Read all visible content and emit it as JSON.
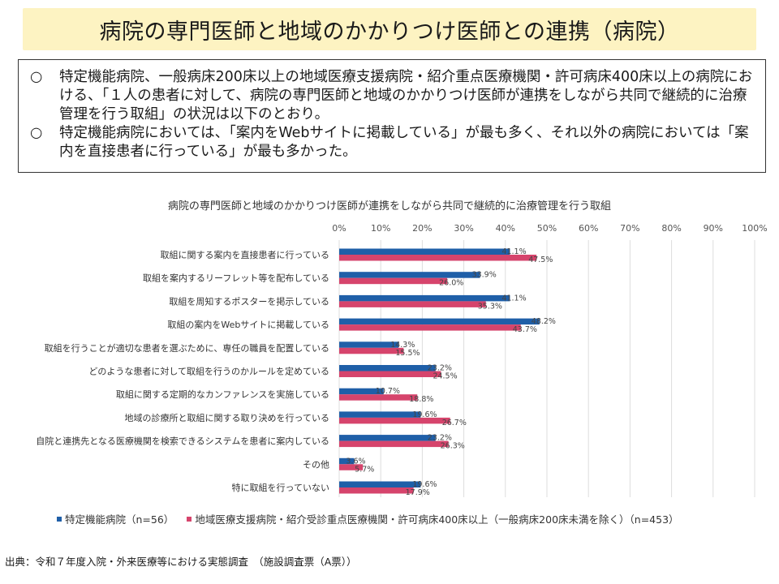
{
  "page": {
    "title": "病院の専門医師と地域のかかりつけ医師との連携（病院）",
    "summary": [
      {
        "mark": "○",
        "text": "特定機能病院、一般病床200床以上の地域医療支援病院・紹介重点医療機関・許可病床400床以上の病院における、「１人の患者に対して、病院の専門医師と地域のかかりつけ医師が連携をしながら共同で継続的に治療管理を行う取組」の状況は以下のとおり。"
      },
      {
        "mark": "○",
        "text": "特定機能病院においては、「案内をWebサイトに掲載している」が最も多く、それ以外の病院においては「案内を直接患者に行っている」が最も多かった。"
      }
    ],
    "source": "出典：令和７年度入院・外来医療等における実態調査　（施設調査票（A票））"
  },
  "chart_data": {
    "type": "bar",
    "orientation": "horizontal",
    "title": "病院の専門医師と地域のかかりつけ医師が連携をしながら共同で継続的に治療管理を行う取組",
    "categories": [
      "取組に関する案内を直接患者に行っている",
      "取組を案内するリーフレット等を配布している",
      "取組を周知するポスターを掲示している",
      "取組の案内をWebサイトに掲載している",
      "取組を行うことが適切な患者を選ぶために、専任の職員を配置している",
      "どのような患者に対して取組を行うのかルールを定めている",
      "取組に関する定期的なカンファレンスを実施している",
      "地域の診療所と取組に関する取り決めを行っている",
      "自院と連携先となる医療機関を検索できるシステムを患者に案内している",
      "その他",
      "特に取組を行っていない"
    ],
    "series": [
      {
        "name": "特定機能病院（n=56）",
        "color": "#1f5fa8",
        "values": [
          41.1,
          33.9,
          41.1,
          48.2,
          14.3,
          23.2,
          10.7,
          19.6,
          23.2,
          3.6,
          19.6
        ]
      },
      {
        "name": "地域医療支援病院・紹介受診重点医療機関・許可病床400床以上（一般病床200床未満を除く）（n=453）",
        "color": "#d6446c",
        "values": [
          47.5,
          26.0,
          35.3,
          43.7,
          15.5,
          24.5,
          18.8,
          26.7,
          26.3,
          5.7,
          17.9
        ]
      }
    ],
    "xlim": [
      0,
      100
    ],
    "xticks": [
      "0%",
      "10%",
      "20%",
      "30%",
      "40%",
      "50%",
      "60%",
      "70%",
      "80%",
      "90%",
      "100%"
    ],
    "grid": true,
    "legend": "bottom"
  }
}
